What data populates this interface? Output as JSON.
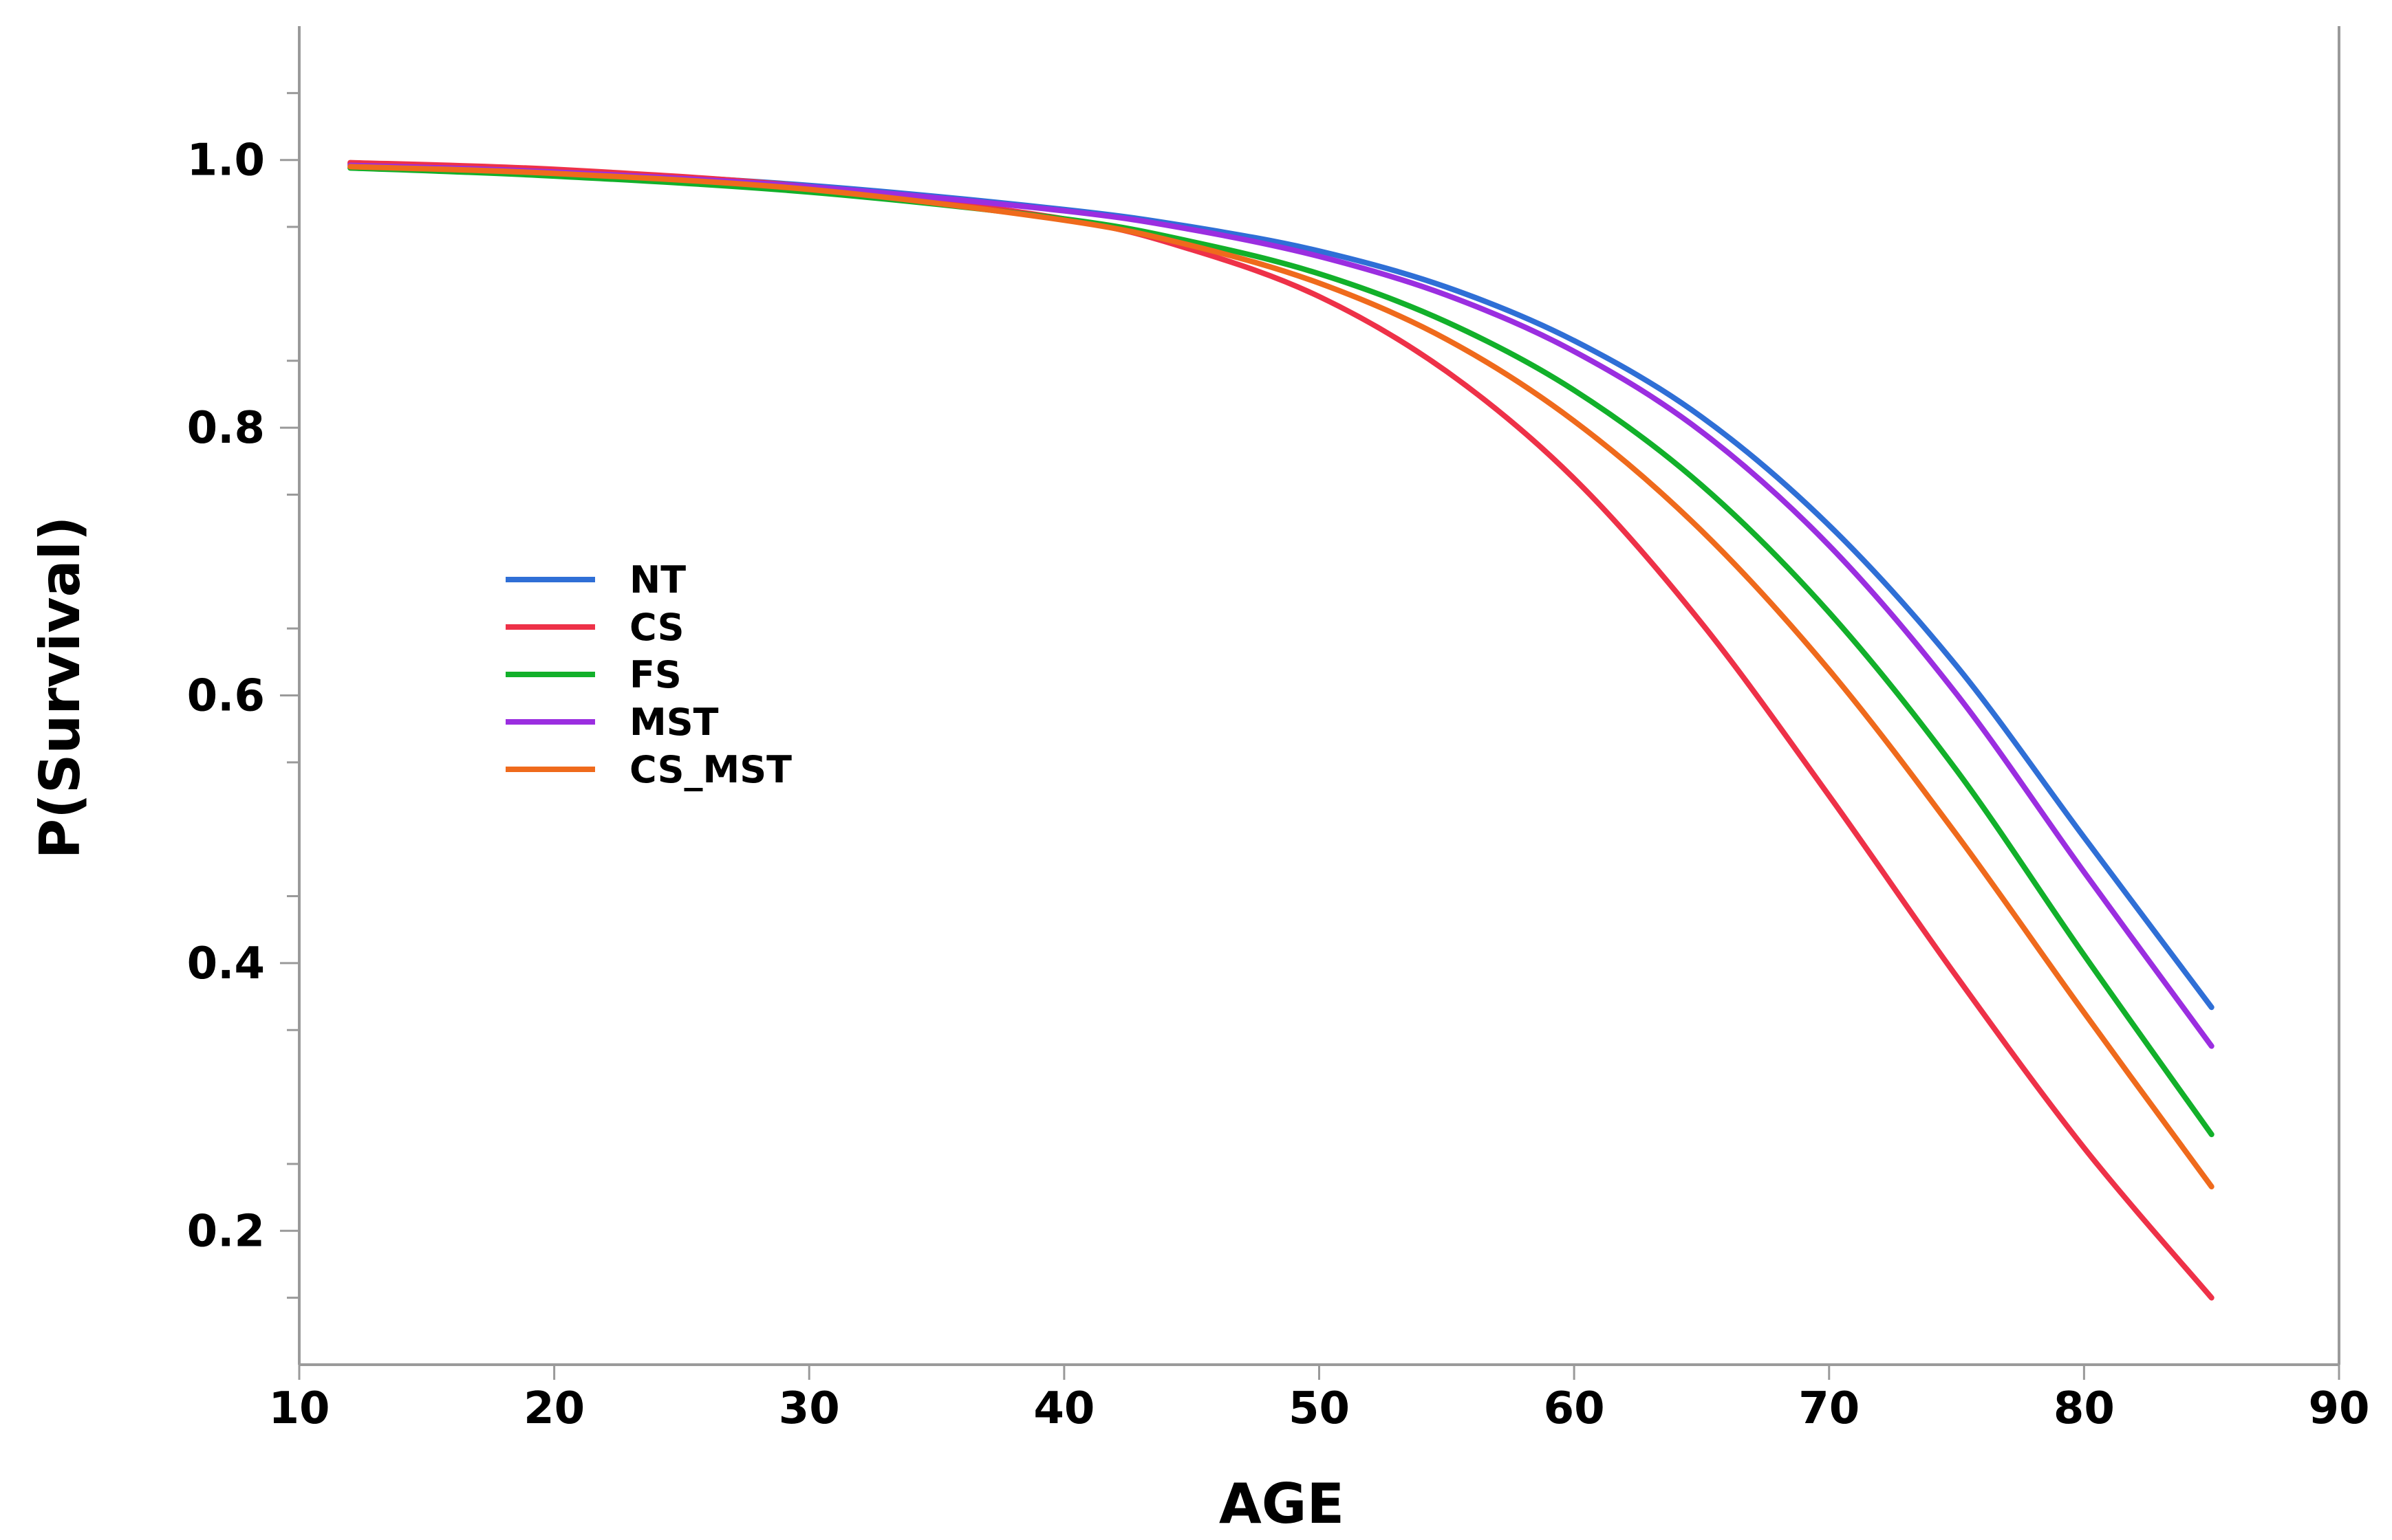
{
  "chart_data": {
    "type": "line",
    "title": "",
    "xlabel": "AGE",
    "ylabel": "P(Survival)",
    "xlim": [
      10,
      90
    ],
    "ylim": [
      0.1,
      1.1
    ],
    "x_ticks": [
      "10",
      "20",
      "30",
      "40",
      "50",
      "60",
      "70",
      "80",
      "90"
    ],
    "y_ticks": [
      "0.2",
      "0.4",
      "0.6",
      "0.8",
      "1.0"
    ],
    "x": [
      12,
      20,
      30,
      40,
      45,
      50,
      55,
      60,
      65,
      70,
      75,
      80,
      85
    ],
    "series": [
      {
        "name": "NT",
        "color": "#2f6fd6",
        "values": [
          0.997,
          0.992,
          0.981,
          0.963,
          0.95,
          0.932,
          0.905,
          0.865,
          0.808,
          0.727,
          0.622,
          0.494,
          0.367
        ]
      },
      {
        "name": "CS",
        "color": "#ee3148",
        "values": [
          0.998,
          0.993,
          0.98,
          0.956,
          0.933,
          0.898,
          0.842,
          0.762,
          0.654,
          0.525,
          0.39,
          0.262,
          0.15
        ]
      },
      {
        "name": "FS",
        "color": "#12b02a",
        "values": [
          0.994,
          0.988,
          0.976,
          0.956,
          0.939,
          0.915,
          0.879,
          0.828,
          0.757,
          0.662,
          0.544,
          0.406,
          0.272
        ]
      },
      {
        "name": "MST",
        "color": "#9b2ee0",
        "values": [
          0.996,
          0.991,
          0.98,
          0.962,
          0.948,
          0.928,
          0.899,
          0.857,
          0.797,
          0.712,
          0.601,
          0.468,
          0.338
        ]
      },
      {
        "name": "CS_MST",
        "color": "#ef6a1c",
        "values": [
          0.995,
          0.99,
          0.978,
          0.955,
          0.936,
          0.908,
          0.866,
          0.805,
          0.723,
          0.619,
          0.496,
          0.363,
          0.233
        ]
      }
    ],
    "legend_position": "left-middle",
    "grid": false
  }
}
